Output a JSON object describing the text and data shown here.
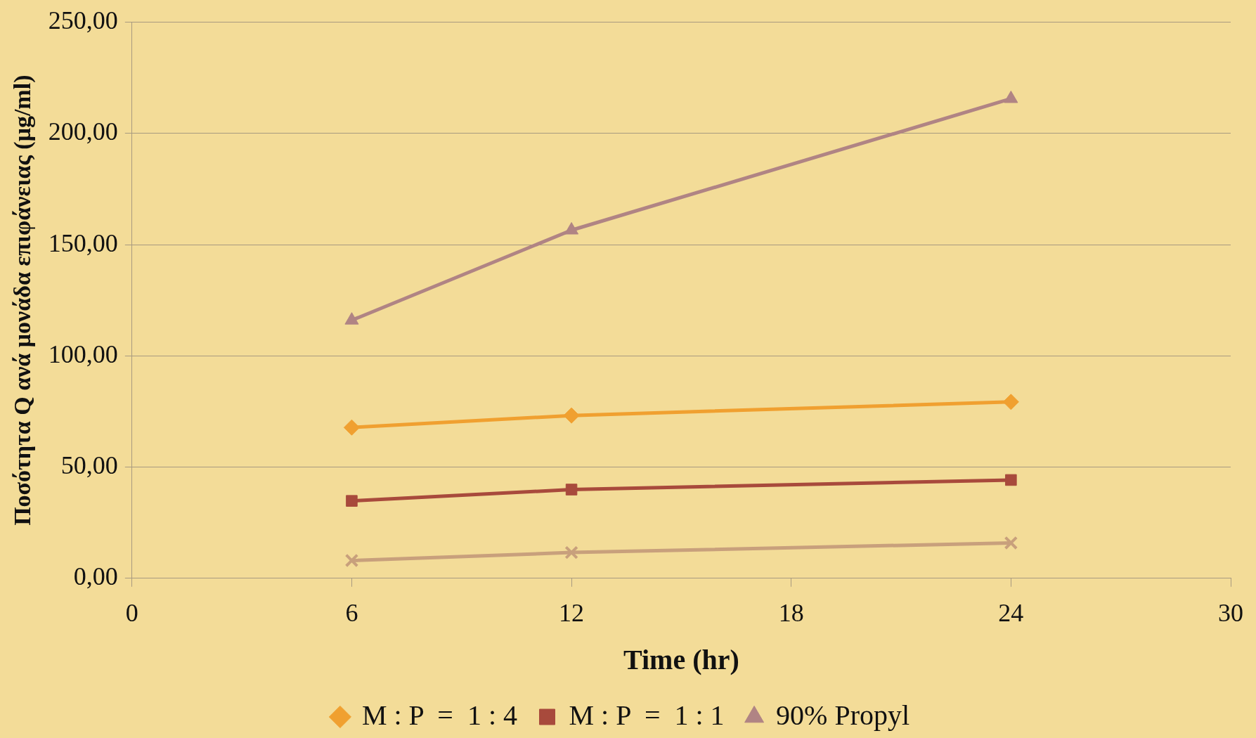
{
  "chart_data": {
    "type": "line",
    "xlabel": "Time (hr)",
    "ylabel": "Ποσότητα Q ανά μονάδα επιφάνειας (μg/ml)",
    "x": [
      6,
      12,
      24
    ],
    "series": [
      {
        "name": "M : P  =  1 : 4",
        "color": "#f0a030",
        "marker": "diamond",
        "values": [
          67.8,
          73.2,
          79.3
        ]
      },
      {
        "name": "M : P  =  1 : 1",
        "color": "#a84a3c",
        "marker": "square",
        "values": [
          34.8,
          39.9,
          44.2
        ]
      },
      {
        "name": "90% Propyl",
        "color": "#b08484",
        "marker": "triangle",
        "values": [
          116,
          156.5,
          215.6
        ]
      },
      {
        "color": "#c8a07c",
        "marker": "cross",
        "values": [
          8,
          11.6,
          15.9
        ]
      }
    ],
    "xlim": [
      0,
      30
    ],
    "xticks": [
      0,
      6,
      12,
      18,
      24,
      30
    ],
    "ylim": [
      0,
      250
    ],
    "yticks": [
      {
        "value": 0,
        "label": "0,00"
      },
      {
        "value": 50,
        "label": "50,00"
      },
      {
        "value": 100,
        "label": "100,00"
      },
      {
        "value": 150,
        "label": "150,00"
      },
      {
        "value": 200,
        "label": "200,00"
      },
      {
        "value": 250,
        "label": "250,00"
      }
    ],
    "grid": "y",
    "legend": "bottom"
  }
}
